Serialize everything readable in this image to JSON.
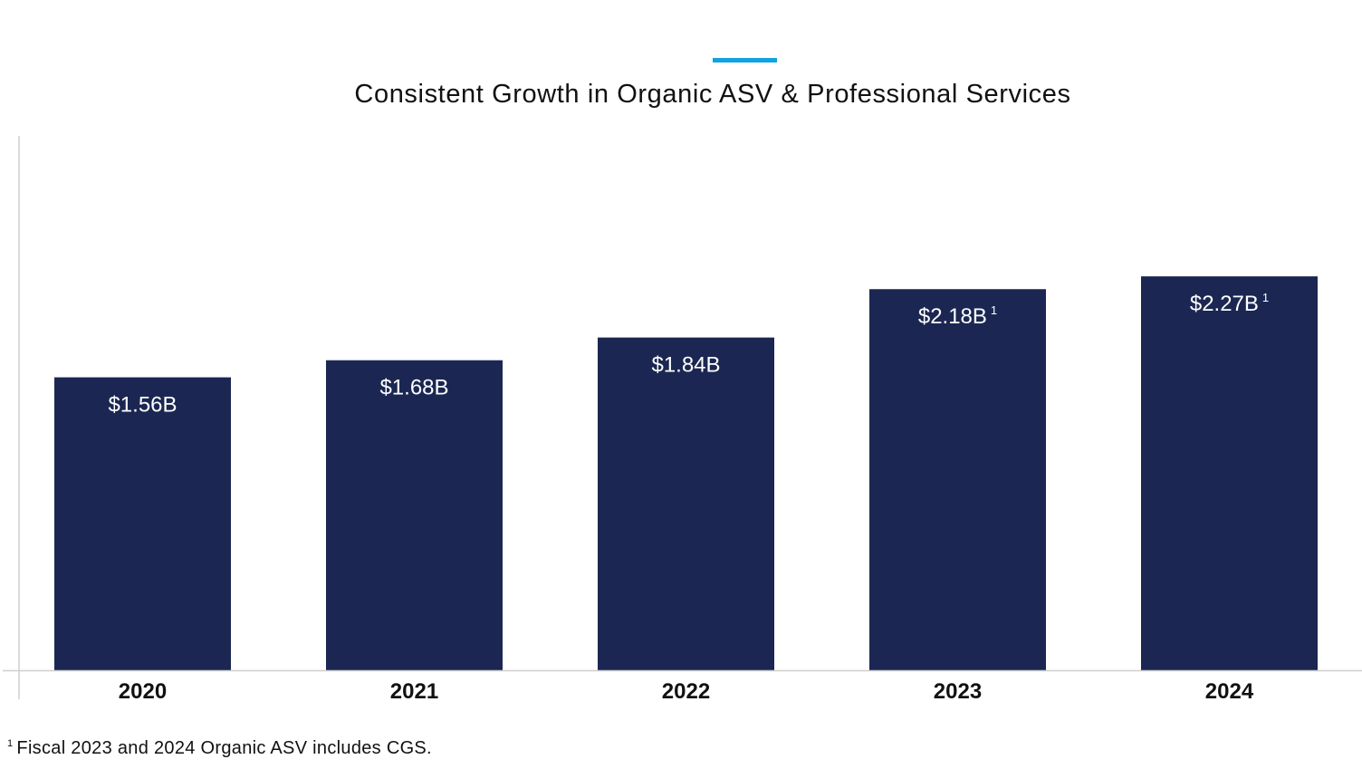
{
  "chart_data": {
    "type": "bar",
    "title": "Consistent Growth in Organic ASV & Professional Services",
    "categories": [
      "2020",
      "2021",
      "2022",
      "2023",
      "2024"
    ],
    "values": [
      1.56,
      1.68,
      1.84,
      2.18,
      2.27
    ],
    "data_labels": [
      "$1.56B",
      "$1.68B",
      "$1.84B",
      "$2.18B",
      "$2.27B"
    ],
    "label_footnote_marks": [
      "",
      "",
      "",
      "1",
      "1"
    ],
    "unit": "$B",
    "xlabel": "",
    "ylabel": "",
    "grid": false,
    "legend": "none",
    "colors": {
      "bar": "#1b2752",
      "accent": "#0fa3e0",
      "axis": "#cfcfcf",
      "label": "#ffffff"
    }
  },
  "footnote": {
    "mark": "1",
    "text": "Fiscal 2023 and 2024 Organic ASV includes CGS."
  }
}
